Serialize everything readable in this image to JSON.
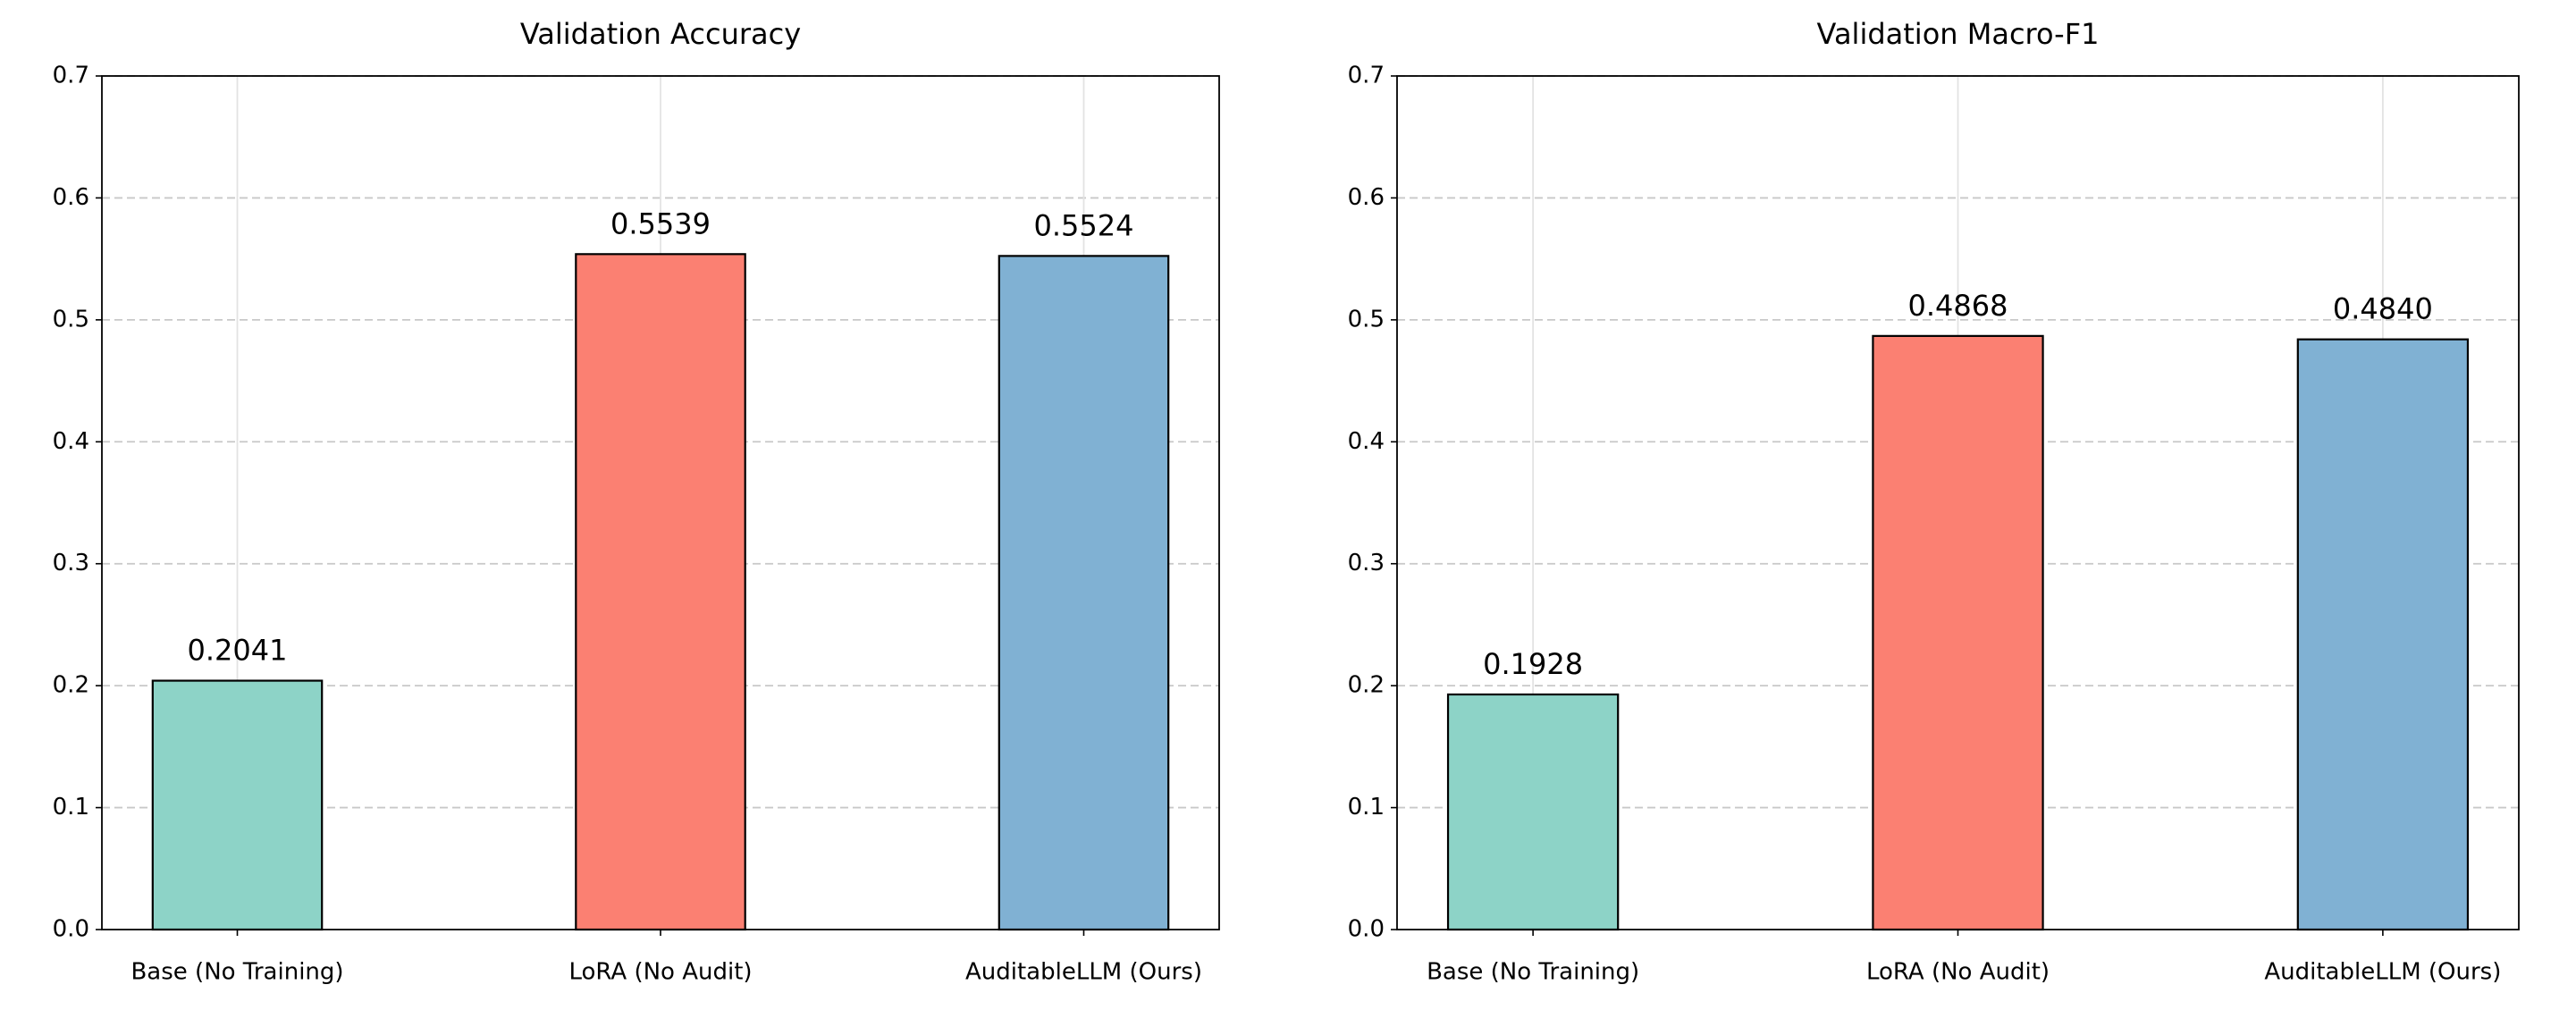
{
  "chart_data": [
    {
      "type": "bar",
      "title": "Validation Accuracy",
      "categories": [
        "Base (No Training)",
        "LoRA (No Audit)",
        "AuditableLLM (Ours)"
      ],
      "values": [
        0.2041,
        0.5539,
        0.5524
      ],
      "colors": [
        "#8dd3c7",
        "#fb8072",
        "#80b1d3"
      ],
      "ylim": [
        0,
        0.7
      ],
      "yticks": [
        {
          "value": 0,
          "label": "0.0"
        },
        0.1,
        0.2,
        0.3,
        0.4,
        0.5,
        0.6,
        0.7
      ],
      "grid": true
    },
    {
      "type": "bar",
      "title": "Validation Macro-F1",
      "categories": [
        "Base (No Training)",
        "LoRA (No Audit)",
        "AuditableLLM (Ours)"
      ],
      "values": [
        0.1928,
        0.4868,
        0.484
      ],
      "value_labels": [
        "0.1928",
        "0.4868",
        "0.4840"
      ],
      "colors": [
        "#8dd3c7",
        "#fb8072",
        "#80b1d3"
      ],
      "ylim": [
        0,
        0.7
      ],
      "yticks": [
        {
          "value": 0,
          "label": "0.0"
        },
        0.1,
        0.2,
        0.3,
        0.4,
        0.5,
        0.6,
        0.7
      ],
      "grid": true
    }
  ]
}
